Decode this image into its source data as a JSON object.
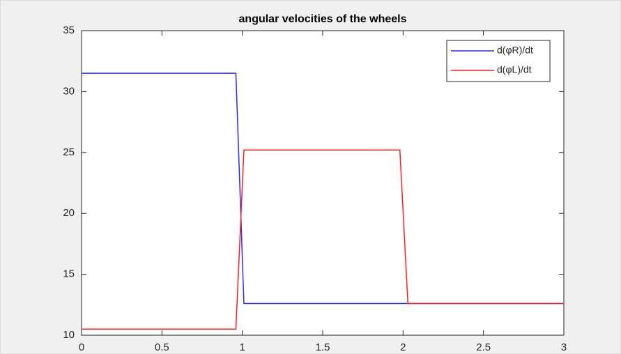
{
  "chart_data": {
    "type": "line",
    "title": "angular velocities of the wheels",
    "series": [
      {
        "name": "d(φR)/dt",
        "color": "#2b2bff",
        "x": [
          0,
          0.96,
          1.01,
          3
        ],
        "values": [
          31.5,
          31.5,
          12.6,
          12.6
        ]
      },
      {
        "name": "d(φL)/dt",
        "color": "#ff2020",
        "x": [
          0,
          0.96,
          1.01,
          1.98,
          2.03,
          3
        ],
        "values": [
          10.5,
          10.5,
          25.2,
          25.2,
          12.6,
          12.6
        ]
      }
    ],
    "xlim": [
      0,
      3
    ],
    "xticks": [
      0,
      0.5,
      1,
      1.5,
      2,
      2.5,
      3
    ],
    "ylim": [
      10,
      35
    ],
    "yticks": [
      10,
      15,
      20,
      25,
      30,
      35
    ],
    "grid": false,
    "legend": "top-right"
  }
}
